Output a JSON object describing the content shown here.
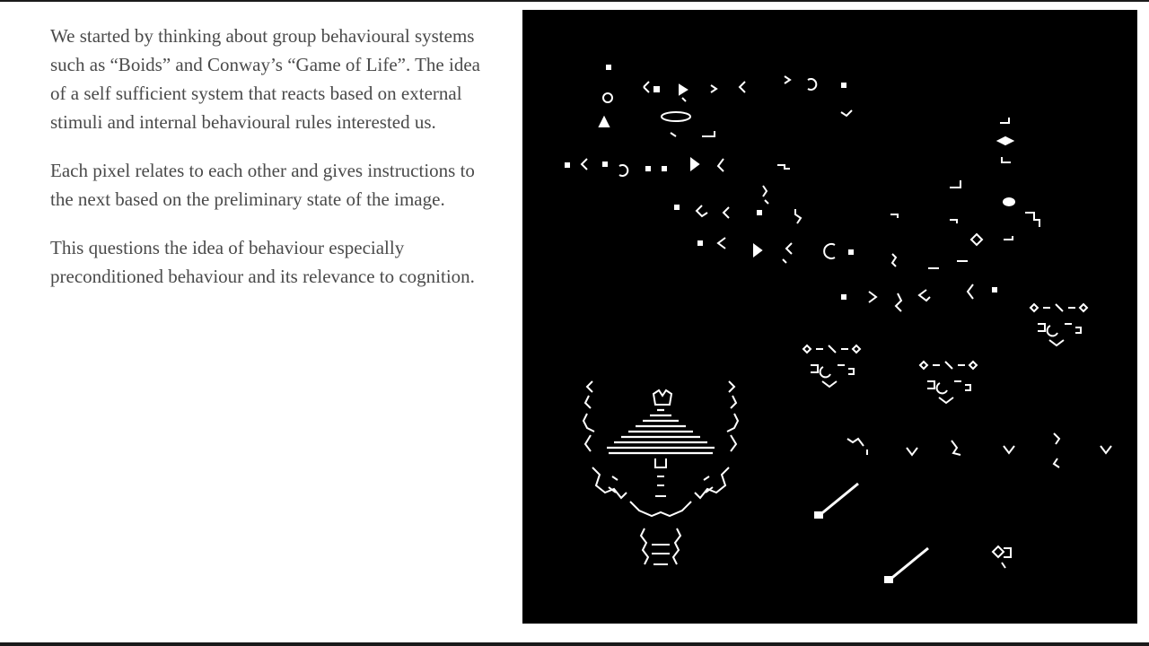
{
  "article": {
    "paragraphs": [
      "We started by thinking about group behavioural systems such as “Boids” and Conway’s “Game of Life”. The idea of a self sufficient system that reacts based on external stimuli and internal behavioural rules interested us.",
      "Each pixel relates to each other and gives instructions to the next based on the preliminary state of the image.",
      "This questions the idea of behaviour especially preconditioned behaviour and its relevance to cognition."
    ]
  },
  "artwork": {
    "subject": "cellular automaton simulation",
    "background_color": "#000000",
    "cell_color": "#ffffff"
  },
  "colors": {
    "page_background": "#ffffff",
    "body_text": "#4a4a4a",
    "frame": "#1a1a1a"
  }
}
